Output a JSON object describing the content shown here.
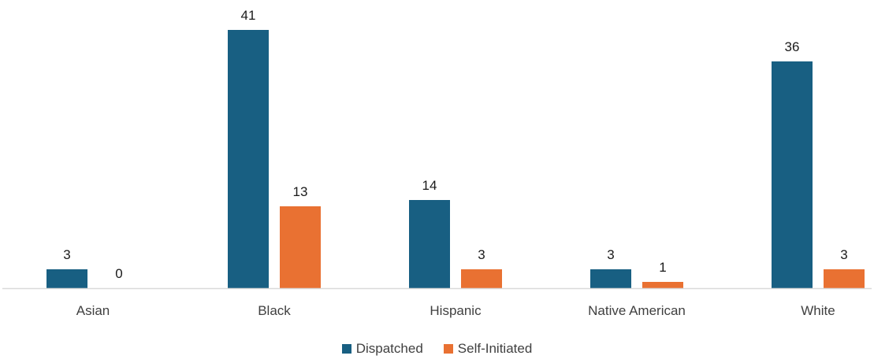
{
  "chart_data": {
    "type": "bar",
    "categories": [
      "Asian",
      "Black",
      "Hispanic",
      "Native American",
      "White"
    ],
    "series": [
      {
        "name": "Dispatched",
        "color": "#185f82",
        "values": [
          3,
          41,
          14,
          3,
          36
        ]
      },
      {
        "name": "Self-Initiated",
        "color": "#e97132",
        "values": [
          0,
          13,
          3,
          1,
          3
        ]
      }
    ],
    "ylim": [
      0,
      41
    ],
    "grid": false,
    "legend_position": "bottom",
    "data_labels": true
  }
}
